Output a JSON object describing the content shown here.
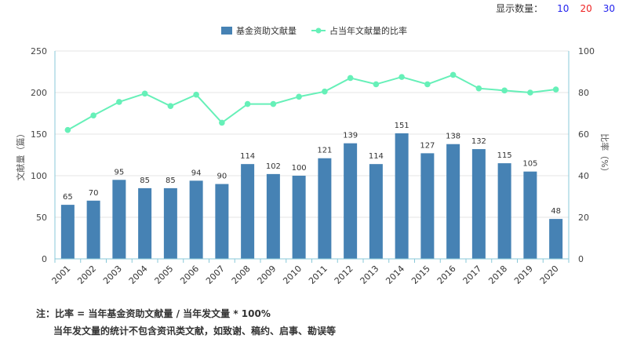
{
  "controls": {
    "label": "显示数量：",
    "options": [
      {
        "text": "10",
        "color": "#2222ee"
      },
      {
        "text": "20",
        "color": "#ee2222"
      },
      {
        "text": "30",
        "color": "#2222ee"
      }
    ]
  },
  "chart_data": {
    "type": "bar",
    "categories": [
      "2001",
      "2002",
      "2003",
      "2004",
      "2005",
      "2006",
      "2007",
      "2008",
      "2009",
      "2010",
      "2011",
      "2012",
      "2013",
      "2014",
      "2015",
      "2016",
      "2017",
      "2018",
      "2019",
      "2020"
    ],
    "series": [
      {
        "name": "基金资助文献量",
        "type": "bar",
        "axis": "left",
        "color": "#4682b4",
        "values": [
          65,
          70,
          95,
          85,
          85,
          94,
          90,
          114,
          102,
          100,
          121,
          139,
          114,
          151,
          127,
          138,
          132,
          115,
          105,
          48
        ]
      },
      {
        "name": "占当年文献量的比率",
        "type": "line",
        "axis": "right",
        "color": "#66f0b8",
        "values": [
          62,
          69,
          75.5,
          79.5,
          73.5,
          79,
          65.5,
          74.5,
          74.5,
          78,
          80.5,
          87,
          84,
          87.5,
          84,
          88.5,
          82,
          81,
          80,
          81.5
        ]
      }
    ],
    "ylabel": "文献量（篇）",
    "y2label": "比率（%）",
    "ylim": [
      0,
      250
    ],
    "y2lim": [
      0,
      100
    ],
    "yticks": [
      0,
      50,
      100,
      150,
      200,
      250
    ],
    "y2ticks": [
      0,
      20,
      40,
      60,
      80,
      100
    ],
    "grid": true,
    "legend_position": "top-center"
  },
  "notes": {
    "line1": "注：比率 = 当年基金资助文献量 / 当年发文量 * 100%",
    "line2": "当年发文量的统计不包含资讯类文献，如致谢、稿约、启事、勘误等"
  }
}
